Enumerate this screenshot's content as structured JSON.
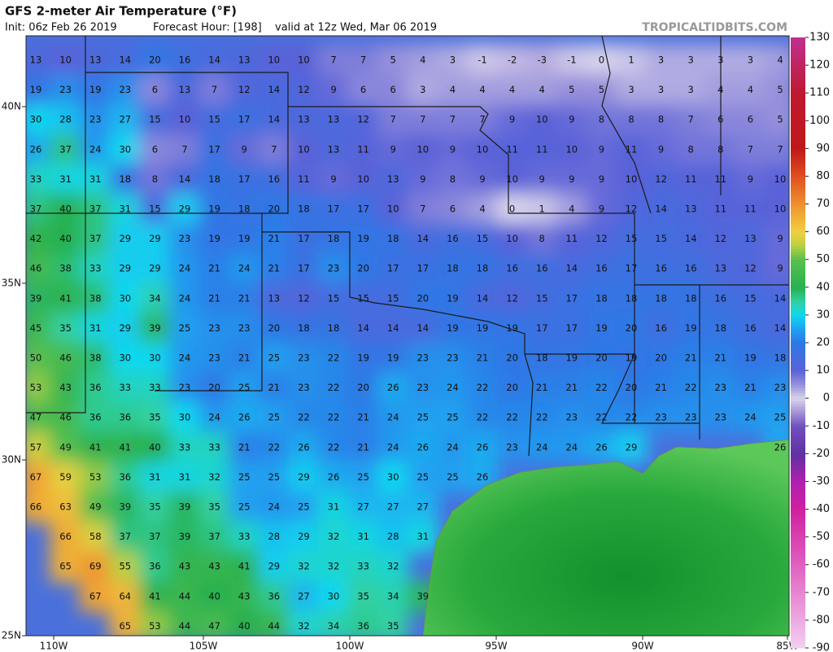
{
  "header": {
    "title": "GFS 2-meter Air Temperature (°F)",
    "init": "Init: 06z Feb 26 2019",
    "forecast_hour": "Forecast Hour: [198]",
    "valid": "valid at 12z Wed, Mar 06 2019",
    "credit": "TROPICALTIDBITS.COM"
  },
  "map": {
    "latitude_labels": [
      "40N",
      "35N",
      "30N",
      "25N"
    ],
    "longitude_labels": [
      "110W",
      "105W",
      "100W",
      "95W",
      "90W",
      "85W"
    ],
    "grid": [
      [
        13,
        10,
        13,
        14,
        20,
        16,
        14,
        13,
        10,
        10,
        7,
        7,
        5,
        4,
        3,
        -1,
        -2,
        -3,
        -1,
        0,
        1,
        3,
        3,
        3,
        3,
        4
      ],
      [
        19,
        23,
        19,
        23,
        6,
        13,
        7,
        12,
        14,
        12,
        9,
        6,
        6,
        3,
        4,
        4,
        4,
        4,
        5,
        5,
        3,
        3,
        3,
        4,
        4,
        5
      ],
      [
        30,
        28,
        23,
        27,
        15,
        10,
        15,
        17,
        14,
        13,
        13,
        12,
        7,
        7,
        7,
        7,
        9,
        10,
        9,
        8,
        8,
        8,
        7,
        6,
        6,
        5
      ],
      [
        26,
        37,
        24,
        30,
        6,
        7,
        17,
        9,
        7,
        10,
        13,
        11,
        9,
        10,
        9,
        10,
        11,
        11,
        10,
        9,
        11,
        9,
        8,
        8,
        7,
        7
      ],
      [
        33,
        31,
        31,
        18,
        8,
        14,
        18,
        17,
        16,
        11,
        9,
        10,
        13,
        9,
        8,
        9,
        10,
        9,
        9,
        9,
        10,
        12,
        11,
        11,
        9,
        10
      ],
      [
        37,
        40,
        37,
        31,
        15,
        29,
        19,
        18,
        20,
        18,
        17,
        17,
        10,
        7,
        6,
        4,
        0,
        1,
        4,
        9,
        12,
        14,
        13,
        11,
        11,
        10
      ],
      [
        42,
        40,
        37,
        29,
        29,
        23,
        19,
        19,
        21,
        17,
        18,
        19,
        18,
        14,
        16,
        15,
        10,
        8,
        11,
        12,
        15,
        15,
        14,
        12,
        13,
        9
      ],
      [
        46,
        38,
        33,
        29,
        29,
        24,
        21,
        24,
        21,
        17,
        23,
        20,
        17,
        17,
        18,
        18,
        16,
        16,
        14,
        16,
        17,
        16,
        16,
        13,
        12,
        9
      ],
      [
        39,
        41,
        38,
        30,
        34,
        24,
        21,
        21,
        13,
        12,
        15,
        15,
        15,
        20,
        19,
        14,
        12,
        15,
        17,
        18,
        18,
        18,
        18,
        16,
        15,
        14
      ],
      [
        45,
        35,
        31,
        29,
        39,
        25,
        23,
        23,
        20,
        18,
        18,
        14,
        14,
        14,
        19,
        19,
        19,
        17,
        17,
        19,
        20,
        16,
        19,
        18,
        16,
        14
      ],
      [
        50,
        46,
        38,
        30,
        30,
        24,
        23,
        21,
        25,
        23,
        22,
        19,
        19,
        23,
        23,
        21,
        20,
        18,
        19,
        20,
        19,
        20,
        21,
        21,
        19,
        18
      ],
      [
        53,
        43,
        36,
        33,
        33,
        23,
        20,
        25,
        21,
        23,
        22,
        20,
        26,
        23,
        24,
        22,
        20,
        21,
        21,
        22,
        20,
        21,
        22,
        23,
        21,
        23
      ],
      [
        47,
        46,
        36,
        36,
        35,
        30,
        24,
        26,
        25,
        22,
        22,
        21,
        24,
        25,
        25,
        22,
        22,
        22,
        23,
        22,
        22,
        23,
        23,
        23,
        24,
        25
      ],
      [
        57,
        49,
        41,
        41,
        40,
        33,
        33,
        21,
        22,
        26,
        22,
        21,
        24,
        26,
        24,
        26,
        23,
        24,
        24,
        26,
        29,
        null,
        null,
        null,
        null,
        26
      ],
      [
        67,
        59,
        53,
        36,
        31,
        31,
        32,
        25,
        25,
        29,
        26,
        25,
        30,
        25,
        25,
        26,
        null,
        null,
        null,
        null,
        null,
        null,
        null,
        null,
        null,
        null
      ],
      [
        66,
        63,
        49,
        39,
        35,
        39,
        35,
        25,
        24,
        25,
        31,
        27,
        27,
        27,
        null,
        null,
        null,
        null,
        null,
        null,
        null,
        null,
        null,
        null,
        null,
        null
      ],
      [
        null,
        66,
        58,
        37,
        37,
        39,
        37,
        33,
        28,
        29,
        32,
        31,
        28,
        31,
        null,
        null,
        null,
        null,
        null,
        null,
        null,
        null,
        null,
        null,
        null,
        null
      ],
      [
        null,
        65,
        69,
        55,
        36,
        43,
        43,
        41,
        29,
        32,
        32,
        33,
        32,
        null,
        null,
        null,
        null,
        null,
        null,
        null,
        null,
        null,
        null,
        null,
        null,
        null
      ],
      [
        null,
        null,
        67,
        64,
        41,
        44,
        40,
        43,
        36,
        27,
        30,
        35,
        34,
        39,
        null,
        null,
        null,
        null,
        null,
        null,
        null,
        null,
        null,
        null,
        null,
        null
      ],
      [
        null,
        null,
        null,
        65,
        53,
        44,
        47,
        40,
        44,
        32,
        34,
        36,
        35,
        null,
        null,
        null,
        null,
        null,
        null,
        null,
        null,
        null,
        null,
        null,
        null,
        null
      ]
    ]
  },
  "colorbar": {
    "ticks": [
      130,
      120,
      110,
      100,
      90,
      80,
      70,
      60,
      50,
      40,
      30,
      20,
      10,
      0,
      -10,
      -20,
      -30,
      -40,
      -50,
      -60,
      -70,
      -80,
      -90
    ]
  }
}
